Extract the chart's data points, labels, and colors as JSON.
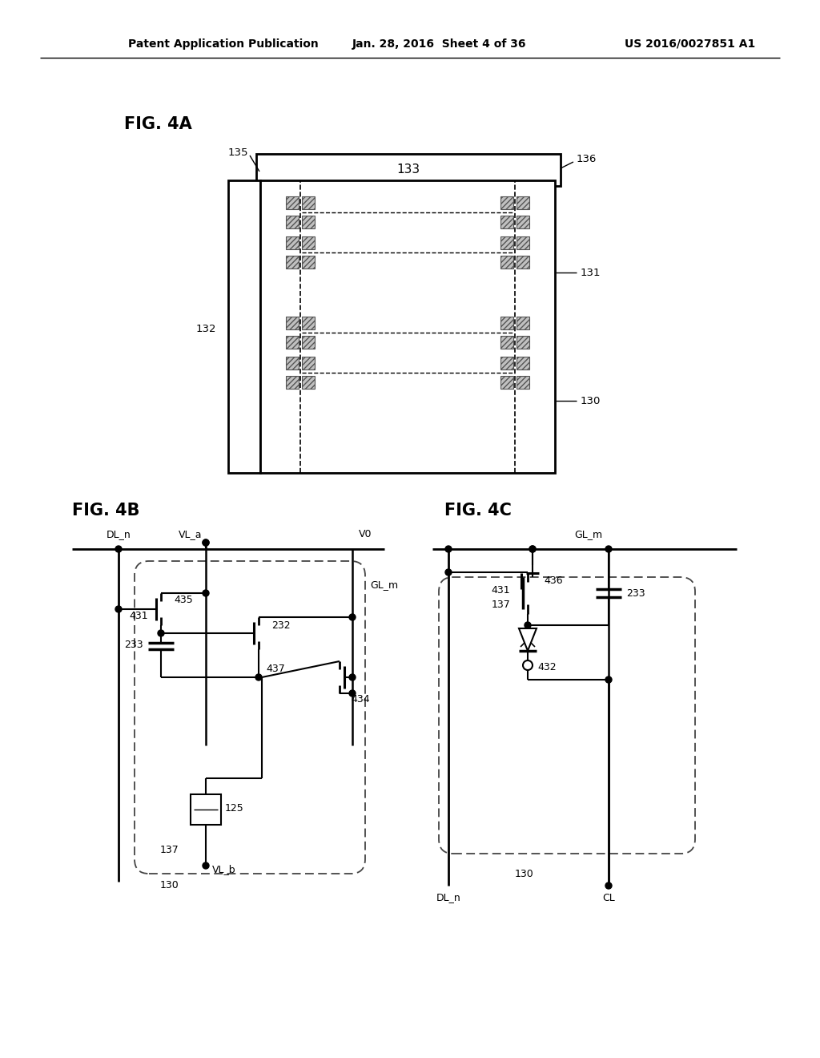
{
  "bg_color": "#ffffff",
  "header_left": "Patent Application Publication",
  "header_mid": "Jan. 28, 2016  Sheet 4 of 36",
  "header_right": "US 2016/0027851 A1",
  "fig4a_label": "FIG. 4A",
  "fig4b_label": "FIG. 4B",
  "fig4c_label": "FIG. 4C",
  "label_133": "133",
  "label_135": "135",
  "label_136": "136",
  "label_131": "131",
  "label_132": "132",
  "label_130_4a": "130",
  "label_435": "435",
  "label_431_b": "431",
  "label_232": "232",
  "label_233_b": "233",
  "label_437": "437",
  "label_434": "434",
  "label_137_b": "137",
  "label_125": "125",
  "label_130_b": "130",
  "label_436": "436",
  "label_431_c": "431",
  "label_233_c": "233",
  "label_137_c": "137",
  "label_432": "432",
  "label_130_c": "130",
  "label_DLn_b": "DL_n",
  "label_VLa": "VL_a",
  "label_V0": "V0",
  "label_GLm_b": "GL_m",
  "label_VLb": "VL_b",
  "label_DLn_c": "DL_n",
  "label_GLm_c": "GL_m",
  "label_CL": "CL"
}
